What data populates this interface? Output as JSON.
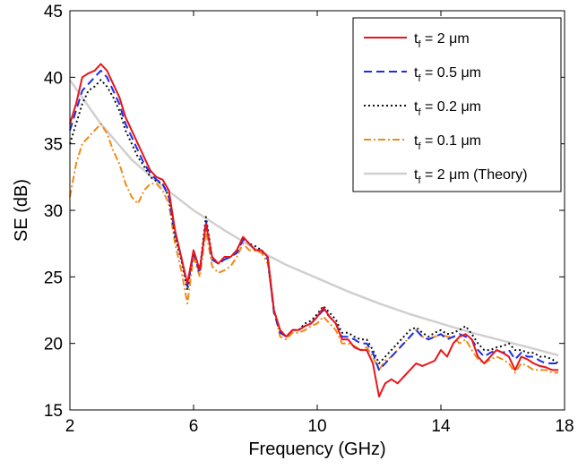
{
  "chart_data": {
    "type": "line",
    "xlabel": "Frequency (GHz)",
    "ylabel": "SE (dB)",
    "xlim": [
      2,
      18
    ],
    "ylim": [
      15,
      45
    ],
    "xticks": [
      "2",
      "6",
      "10",
      "14",
      "18"
    ],
    "yticks": [
      "15",
      "20",
      "25",
      "30",
      "35",
      "40",
      "45"
    ],
    "grid": false,
    "legend_position": "top-right",
    "series": [
      {
        "name_main": "t",
        "name_sub": "f",
        "name_rest": " = 2 μm",
        "color": "#e8141a",
        "dash": "",
        "width": 2,
        "x": [
          2.0,
          2.2,
          2.4,
          2.6,
          2.8,
          3.0,
          3.2,
          3.4,
          3.6,
          3.8,
          4.0,
          4.2,
          4.4,
          4.6,
          4.8,
          5.0,
          5.2,
          5.4,
          5.6,
          5.8,
          6.0,
          6.2,
          6.4,
          6.6,
          6.8,
          7.0,
          7.2,
          7.4,
          7.6,
          7.8,
          8.0,
          8.2,
          8.4,
          8.6,
          8.8,
          9.0,
          9.2,
          9.4,
          9.6,
          9.8,
          10.0,
          10.2,
          10.4,
          10.6,
          10.8,
          11.0,
          11.2,
          11.4,
          11.6,
          11.8,
          12.0,
          12.2,
          12.4,
          12.6,
          12.8,
          13.0,
          13.2,
          13.4,
          13.6,
          13.8,
          14.0,
          14.2,
          14.4,
          14.6,
          14.8,
          15.0,
          15.2,
          15.4,
          15.6,
          15.8,
          16.0,
          16.2,
          16.4,
          16.6,
          16.8,
          17.0,
          17.2,
          17.4,
          17.6,
          17.8
        ],
        "y": [
          36.5,
          38.0,
          40.0,
          40.3,
          40.5,
          41.0,
          40.5,
          39.5,
          38.5,
          37.0,
          36.0,
          35.0,
          34.0,
          33.0,
          32.5,
          32.3,
          31.5,
          28.5,
          26.5,
          24.5,
          27.0,
          25.5,
          29.0,
          26.5,
          26.0,
          26.5,
          26.5,
          27.0,
          28.0,
          27.5,
          27.0,
          27.0,
          26.5,
          22.5,
          21.0,
          20.5,
          21.0,
          21.0,
          21.3,
          21.5,
          22.0,
          22.7,
          22.0,
          21.5,
          20.3,
          20.3,
          19.7,
          19.5,
          19.5,
          18.5,
          16.0,
          17.0,
          17.3,
          17.0,
          17.5,
          18.0,
          18.5,
          18.3,
          18.5,
          18.7,
          19.5,
          19.0,
          20.0,
          20.5,
          20.7,
          20.3,
          19.0,
          18.5,
          19.0,
          19.5,
          19.3,
          19.0,
          18.0,
          19.0,
          18.8,
          18.5,
          18.3,
          18.2,
          18.0,
          18.0
        ]
      },
      {
        "name_main": "t",
        "name_sub": "f",
        "name_rest": " = 0.5 μm",
        "color": "#1a2ee6",
        "dash": "9,5",
        "width": 2,
        "x": [
          2.0,
          2.2,
          2.4,
          2.6,
          2.8,
          3.0,
          3.2,
          3.4,
          3.6,
          3.8,
          4.0,
          4.2,
          4.4,
          4.6,
          4.8,
          5.0,
          5.2,
          5.4,
          5.6,
          5.8,
          6.0,
          6.2,
          6.4,
          6.6,
          6.8,
          7.0,
          7.2,
          7.4,
          7.6,
          7.8,
          8.0,
          8.2,
          8.4,
          8.6,
          8.8,
          9.0,
          9.2,
          9.4,
          9.6,
          9.8,
          10.0,
          10.2,
          10.4,
          10.6,
          10.8,
          11.0,
          11.2,
          11.4,
          11.6,
          11.8,
          12.0,
          12.2,
          12.4,
          12.6,
          12.8,
          13.0,
          13.2,
          13.4,
          13.6,
          13.8,
          14.0,
          14.2,
          14.4,
          14.6,
          14.8,
          15.0,
          15.2,
          15.4,
          15.6,
          15.8,
          16.0,
          16.2,
          16.4,
          16.6,
          16.8,
          17.0,
          17.2,
          17.4,
          17.6,
          17.8
        ],
        "y": [
          36.0,
          37.5,
          39.0,
          39.5,
          40.0,
          40.5,
          40.0,
          39.0,
          38.0,
          36.5,
          35.5,
          34.5,
          33.5,
          32.8,
          32.3,
          32.0,
          31.0,
          28.3,
          26.5,
          24.3,
          26.8,
          25.3,
          29.2,
          26.3,
          26.0,
          26.3,
          26.5,
          26.8,
          27.8,
          27.5,
          27.0,
          27.0,
          26.3,
          22.3,
          20.8,
          20.5,
          21.0,
          21.0,
          21.3,
          21.5,
          22.0,
          22.5,
          22.0,
          21.5,
          20.5,
          20.5,
          20.3,
          20.0,
          20.0,
          19.3,
          18.0,
          18.5,
          19.0,
          19.5,
          20.0,
          20.5,
          21.0,
          20.5,
          20.3,
          20.5,
          20.7,
          20.3,
          20.5,
          20.7,
          20.5,
          20.3,
          19.5,
          19.0,
          19.3,
          19.5,
          19.3,
          19.5,
          18.8,
          19.3,
          19.0,
          19.0,
          18.7,
          18.5,
          18.5,
          18.5
        ]
      },
      {
        "name_main": "t",
        "name_sub": "f",
        "name_rest": " = 0.2 μm",
        "color": "#111111",
        "dash": "2,3",
        "width": 2,
        "x": [
          2.0,
          2.2,
          2.4,
          2.6,
          2.8,
          3.0,
          3.2,
          3.4,
          3.6,
          3.8,
          4.0,
          4.2,
          4.4,
          4.6,
          4.8,
          5.0,
          5.2,
          5.4,
          5.6,
          5.8,
          6.0,
          6.2,
          6.4,
          6.6,
          6.8,
          7.0,
          7.2,
          7.4,
          7.6,
          7.8,
          8.0,
          8.2,
          8.4,
          8.6,
          8.8,
          9.0,
          9.2,
          9.4,
          9.6,
          9.8,
          10.0,
          10.2,
          10.4,
          10.6,
          10.8,
          11.0,
          11.2,
          11.4,
          11.6,
          11.8,
          12.0,
          12.2,
          12.4,
          12.6,
          12.8,
          13.0,
          13.2,
          13.4,
          13.6,
          13.8,
          14.0,
          14.2,
          14.4,
          14.6,
          14.8,
          15.0,
          15.2,
          15.4,
          15.6,
          15.8,
          16.0,
          16.2,
          16.4,
          16.6,
          16.8,
          17.0,
          17.2,
          17.4,
          17.6,
          17.8
        ],
        "y": [
          35.0,
          36.5,
          38.0,
          39.0,
          39.3,
          39.8,
          39.3,
          38.5,
          37.5,
          36.0,
          35.0,
          34.0,
          33.3,
          32.5,
          32.2,
          32.0,
          31.0,
          28.0,
          26.3,
          24.0,
          27.0,
          25.5,
          29.5,
          26.5,
          26.0,
          26.3,
          26.5,
          27.0,
          28.0,
          27.5,
          27.3,
          27.0,
          26.5,
          22.5,
          21.0,
          20.5,
          21.0,
          21.0,
          21.5,
          21.7,
          22.2,
          22.8,
          22.3,
          21.8,
          20.8,
          20.8,
          20.5,
          20.3,
          20.3,
          19.5,
          18.5,
          19.0,
          19.5,
          20.0,
          20.5,
          21.0,
          21.2,
          20.8,
          20.5,
          20.8,
          21.0,
          20.7,
          20.8,
          21.0,
          21.3,
          20.7,
          20.0,
          19.5,
          19.5,
          19.7,
          19.8,
          20.0,
          19.5,
          19.5,
          19.3,
          19.3,
          19.0,
          19.0,
          18.8,
          18.5
        ]
      },
      {
        "name_main": "t",
        "name_sub": "f",
        "name_rest": " = 0.1 μm",
        "color": "#f08a19",
        "dash": "8,3,2,3",
        "width": 2,
        "x": [
          2.0,
          2.2,
          2.4,
          2.6,
          2.8,
          3.0,
          3.2,
          3.4,
          3.6,
          3.8,
          4.0,
          4.2,
          4.4,
          4.6,
          4.8,
          5.0,
          5.2,
          5.4,
          5.6,
          5.8,
          6.0,
          6.2,
          6.4,
          6.6,
          6.8,
          7.0,
          7.2,
          7.4,
          7.6,
          7.8,
          8.0,
          8.2,
          8.4,
          8.6,
          8.8,
          9.0,
          9.2,
          9.4,
          9.6,
          9.8,
          10.0,
          10.2,
          10.4,
          10.6,
          10.8,
          11.0,
          11.2,
          11.4,
          11.6,
          11.8,
          12.0,
          12.2,
          12.4,
          12.6,
          12.8,
          13.0,
          13.2,
          13.4,
          13.6,
          13.8,
          14.0,
          14.2,
          14.4,
          14.6,
          14.8,
          15.0,
          15.2,
          15.4,
          15.6,
          15.8,
          16.0,
          16.2,
          16.4,
          16.6,
          16.8,
          17.0,
          17.2,
          17.4,
          17.6,
          17.8
        ],
        "y": [
          31.0,
          33.5,
          35.0,
          35.5,
          36.0,
          36.5,
          35.8,
          34.5,
          33.5,
          32.0,
          31.0,
          30.5,
          31.5,
          32.0,
          32.0,
          31.5,
          30.5,
          27.5,
          25.5,
          23.0,
          26.5,
          25.0,
          28.5,
          25.8,
          25.3,
          25.5,
          25.8,
          26.5,
          27.5,
          27.0,
          27.0,
          26.8,
          26.0,
          22.5,
          20.5,
          20.3,
          20.8,
          20.8,
          21.0,
          21.3,
          21.5,
          22.0,
          21.5,
          21.0,
          20.0,
          20.0,
          19.8,
          19.5,
          19.7,
          19.0,
          18.0,
          18.7,
          19.0,
          19.5,
          20.0,
          20.5,
          21.0,
          20.5,
          20.3,
          20.5,
          20.7,
          20.5,
          20.5,
          20.0,
          20.3,
          19.5,
          18.8,
          18.5,
          18.8,
          19.0,
          18.8,
          18.5,
          17.8,
          18.5,
          18.3,
          18.0,
          18.0,
          18.0,
          17.8,
          17.8
        ]
      },
      {
        "name_main": "t",
        "name_sub": "f",
        "name_rest": " = 2 μm (Theory)",
        "color": "#d0d0d0",
        "dash": "",
        "width": 2.5,
        "x": [
          2,
          3,
          4,
          5,
          6,
          7,
          8,
          9,
          10,
          11,
          12,
          13,
          14,
          15,
          16,
          17,
          17.8
        ],
        "y": [
          39.8,
          36.5,
          33.8,
          31.8,
          30.0,
          28.5,
          27.1,
          25.9,
          24.9,
          23.9,
          23.0,
          22.2,
          21.5,
          20.8,
          20.2,
          19.6,
          19.1
        ]
      }
    ]
  }
}
